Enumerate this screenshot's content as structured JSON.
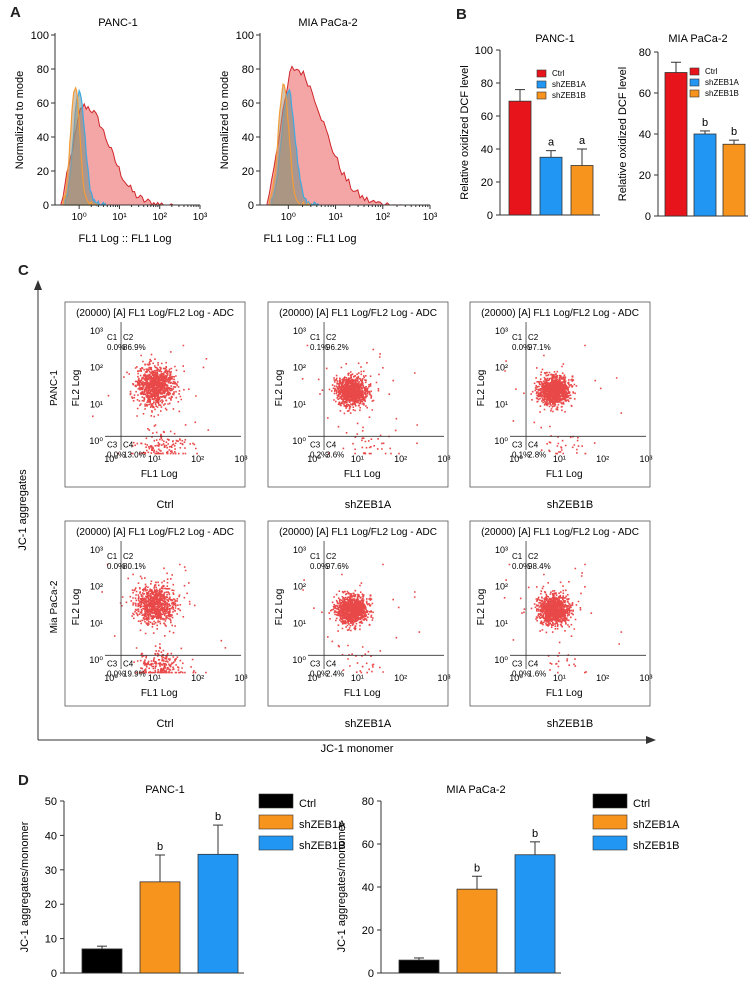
{
  "panel_labels": {
    "a": "A",
    "b": "B",
    "c": "C",
    "d": "D"
  },
  "colors": {
    "red": "#e8141c",
    "blue": "#2196f3",
    "orange": "#f7941d",
    "black": "#000000",
    "hist_red": "#f4a5a5",
    "hist_red_line": "#d0262b",
    "hist_blue_line": "#3fa9e0",
    "hist_orange_line": "#f39c3a",
    "dot": "#e41a1c"
  },
  "panel_a": [
    {
      "title": "PANC-1",
      "ylabel": "Normalized to mode",
      "xlabel": "FL1 Log :: FL1 Log",
      "yticks": [
        "0",
        "20",
        "40",
        "60",
        "80",
        "100"
      ],
      "xticks": [
        "10⁰",
        "10¹",
        "10²",
        "10³"
      ]
    },
    {
      "title": "MIA PaCa-2",
      "ylabel": "Normalized to mode",
      "xlabel": "FL1 Log :: FL1 Log",
      "yticks": [
        "0",
        "20",
        "40",
        "60",
        "80",
        "100"
      ],
      "xticks": [
        "10⁰",
        "10¹",
        "10²",
        "10³"
      ]
    }
  ],
  "flow_plots": {
    "title": "(20000) [A] FL1 Log/FL2 Log - ADC",
    "xlabel": "FL1 Log",
    "ylabel": "FL2 Log",
    "ticks": [
      "10⁰",
      "10¹",
      "10²",
      "10³"
    ],
    "quad_labels": [
      "C1",
      "C2",
      "C3",
      "C4"
    ]
  },
  "panel_c": {
    "y_axis_label": "JC-1 aggregates",
    "x_axis_label": "JC-1 monomer",
    "row_labels": [
      "PANC-1",
      "Mia PaCa-2"
    ],
    "col_labels": [
      "Ctrl",
      "shZEB1A",
      "shZEB1B"
    ],
    "plots": [
      {
        "q": [
          "0.0%",
          "86.9%",
          "0.0%",
          "13.0%"
        ],
        "low_frac": 0.13
      },
      {
        "q": [
          "0.1%",
          "96.2%",
          "0.2%",
          "3.6%"
        ],
        "low_frac": 0.036
      },
      {
        "q": [
          "0.0%",
          "97.1%",
          "0.1%",
          "2.8%"
        ],
        "low_frac": 0.028
      },
      {
        "q": [
          "0.0%",
          "80.1%",
          "0.0%",
          "19.9%"
        ],
        "low_frac": 0.199
      },
      {
        "q": [
          "0.0%",
          "97.6%",
          "0.0%",
          "2.4%"
        ],
        "low_frac": 0.024
      },
      {
        "q": [
          "0.0%",
          "98.4%",
          "0.0%",
          "1.6%"
        ],
        "low_frac": 0.016
      }
    ]
  },
  "chart_data": [
    {
      "type": "bar",
      "panel": "B",
      "title": "PANC-1",
      "ylabel": "Relative oxidized DCF level",
      "categories": [
        "Ctrl",
        "shZEB1A",
        "shZEB1B"
      ],
      "values": [
        69,
        35,
        30
      ],
      "errors": [
        7,
        4,
        10
      ],
      "annotations": [
        "",
        "a",
        "a"
      ],
      "ylim": [
        0,
        100
      ],
      "yticks": [
        0,
        20,
        40,
        60,
        80,
        100
      ],
      "legend": [
        "Ctrl",
        "shZEB1A",
        "shZEB1B"
      ],
      "legend_position": "top-right"
    },
    {
      "type": "bar",
      "panel": "B",
      "title": "MIA PaCa-2",
      "ylabel": "Relative oxidized DCF level",
      "categories": [
        "Ctrl",
        "shZEB1A",
        "shZEB1B"
      ],
      "values": [
        70,
        40,
        35
      ],
      "errors": [
        5,
        1.5,
        2
      ],
      "annotations": [
        "",
        "b",
        "b"
      ],
      "ylim": [
        0,
        80
      ],
      "yticks": [
        0,
        20,
        40,
        60,
        80
      ],
      "legend": [
        "Ctrl",
        "shZEB1A",
        "shZEB1B"
      ],
      "legend_position": "top-right"
    },
    {
      "type": "bar",
      "panel": "D",
      "title": "PANC-1",
      "ylabel": "JC-1 aggregates/monomer",
      "categories": [
        "Ctrl",
        "shZEB1A",
        "shZEB1B"
      ],
      "values": [
        7,
        26.5,
        34.5
      ],
      "errors": [
        0.8,
        7.8,
        8.5
      ],
      "annotations": [
        "",
        "b",
        "b"
      ],
      "ylim": [
        0,
        50
      ],
      "yticks": [
        0,
        10,
        20,
        30,
        40,
        50
      ],
      "legend": [
        "Ctrl",
        "shZEB1A",
        "shZEB1B"
      ],
      "legend_position": "right"
    },
    {
      "type": "bar",
      "panel": "D",
      "title": "MIA PaCa-2",
      "ylabel": "JC-1 aggregates/monomer",
      "categories": [
        "Ctrl",
        "shZEB1A",
        "shZEB1B"
      ],
      "values": [
        6,
        39,
        55
      ],
      "errors": [
        1,
        6,
        6
      ],
      "annotations": [
        "",
        "b",
        "b"
      ],
      "ylim": [
        0,
        80
      ],
      "yticks": [
        0,
        20,
        40,
        60,
        80
      ],
      "legend": [
        "Ctrl",
        "shZEB1A",
        "shZEB1B"
      ],
      "legend_position": "right"
    }
  ]
}
